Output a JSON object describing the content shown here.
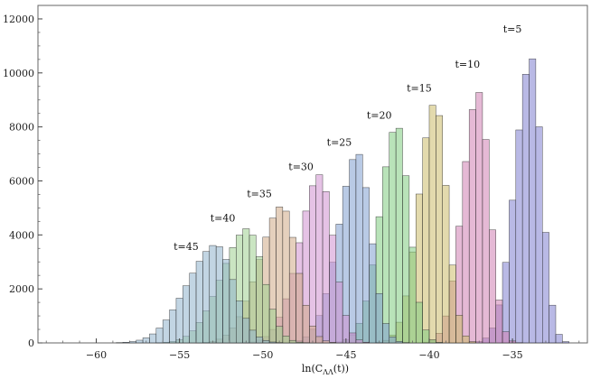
{
  "chart_data": {
    "type": "bar",
    "title": "",
    "xlabel": "ln(C_ΛΛ(t))",
    "xlabel_main": "ln(C",
    "xlabel_sub": "ΛΛ",
    "xlabel_tail": "(t))",
    "ylabel": "",
    "xlim": [
      -63.5,
      -30.5
    ],
    "ylim": [
      0,
      12500
    ],
    "bin_width": 0.4,
    "grid": false,
    "x_ticks": [
      -60,
      -55,
      -50,
      -45,
      -40,
      -35
    ],
    "x_tick_labels": [
      "−60",
      "−55",
      "−50",
      "−45",
      "−40",
      "−35"
    ],
    "y_ticks": [
      0,
      2000,
      4000,
      6000,
      8000,
      10000,
      12000
    ],
    "y_tick_labels": [
      "0",
      "2000",
      "4000",
      "6000",
      "8000",
      "10000",
      "12000"
    ],
    "series": [
      {
        "name": "t=5",
        "color": "#7f7fd0",
        "peak_x": -33.9,
        "peak_y": 10800,
        "sigma": 0.75,
        "label_x": -35.0,
        "label_y": 11500
      },
      {
        "name": "t=10",
        "color": "#d07fb2",
        "peak_x": -37.0,
        "peak_y": 9500,
        "sigma": 0.75,
        "label_x": -37.7,
        "label_y": 10200
      },
      {
        "name": "t=15",
        "color": "#ccbb6a",
        "peak_x": -39.6,
        "peak_y": 8800,
        "sigma": 0.8,
        "label_x": -40.6,
        "label_y": 9300
      },
      {
        "name": "t=20",
        "color": "#7fcc7f",
        "peak_x": -41.9,
        "peak_y": 7850,
        "sigma": 0.85,
        "label_x": -43.0,
        "label_y": 8300
      },
      {
        "name": "t=25",
        "color": "#7f9fd0",
        "peak_x": -44.3,
        "peak_y": 6800,
        "sigma": 0.95,
        "label_x": -45.4,
        "label_y": 7300
      },
      {
        "name": "t=30",
        "color": "#d08fcf",
        "peak_x": -46.6,
        "peak_y": 6050,
        "sigma": 1.0,
        "label_x": -47.7,
        "label_y": 6400
      },
      {
        "name": "t=35",
        "color": "#d0aa86",
        "peak_x": -48.9,
        "peak_y": 5000,
        "sigma": 1.1,
        "label_x": -50.2,
        "label_y": 5400
      },
      {
        "name": "t=40",
        "color": "#9fd08f",
        "peak_x": -51.0,
        "peak_y": 4200,
        "sigma": 1.2,
        "label_x": -52.4,
        "label_y": 4500
      },
      {
        "name": "t=45",
        "color": "#8fb3cc",
        "peak_x": -52.9,
        "peak_y": 3600,
        "sigma": 1.35,
        "label_x": -54.6,
        "label_y": 3450
      }
    ]
  }
}
